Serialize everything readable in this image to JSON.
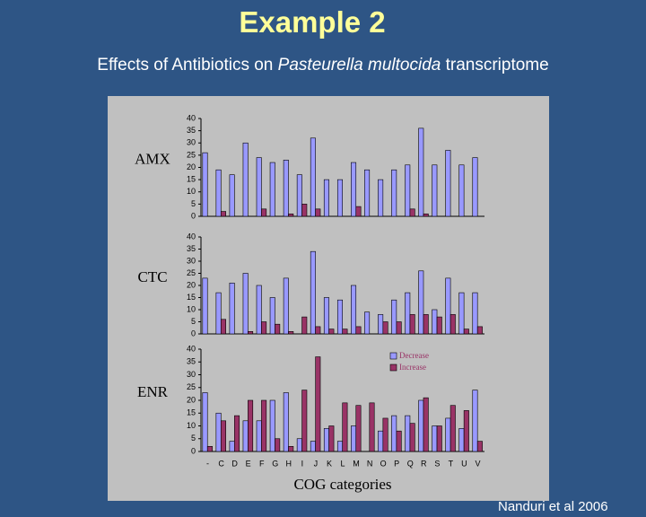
{
  "title": "Example 2",
  "subtitle": [
    "Effects of Antibiotics on",
    "Pasteurella multocida",
    "transcriptome"
  ],
  "footer": "Nanduri et al 2006",
  "chart_data": [
    {
      "type": "bar",
      "title": "AMX",
      "ylim": [
        0,
        40
      ],
      "yticks": [
        0,
        5,
        10,
        15,
        20,
        25,
        30,
        35,
        40
      ],
      "series": [
        {
          "name": "Decrease",
          "color": "#9999ff",
          "values": [
            26,
            19,
            17,
            30,
            24,
            22,
            23,
            17,
            32,
            15,
            15,
            22,
            19,
            15,
            19,
            21,
            36,
            21,
            27,
            21,
            24
          ]
        },
        {
          "name": "Increase",
          "color": "#993366",
          "values": [
            0,
            2,
            0,
            0,
            3,
            0,
            1,
            5,
            3,
            0,
            0,
            4,
            0,
            0,
            0,
            3,
            1,
            0,
            0,
            0,
            0
          ]
        }
      ]
    },
    {
      "type": "bar",
      "title": "CTC",
      "ylim": [
        0,
        40
      ],
      "yticks": [
        0,
        5,
        10,
        15,
        20,
        25,
        30,
        35,
        40
      ],
      "series": [
        {
          "name": "Decrease",
          "color": "#9999ff",
          "values": [
            23,
            17,
            21,
            25,
            20,
            15,
            23,
            0,
            34,
            15,
            14,
            20,
            9,
            8,
            14,
            17,
            26,
            10,
            23,
            17,
            17
          ]
        },
        {
          "name": "Increase",
          "color": "#993366",
          "values": [
            0,
            6,
            0,
            1,
            5,
            4,
            1,
            7,
            3,
            2,
            2,
            3,
            0,
            5,
            5,
            8,
            8,
            7,
            8,
            2,
            3
          ]
        }
      ]
    },
    {
      "type": "bar",
      "title": "ENR",
      "xlabel": "COG categories",
      "legend": "upper right",
      "categories": [
        "-",
        "C",
        "D",
        "E",
        "F",
        "G",
        "H",
        "I",
        "J",
        "K",
        "L",
        "M",
        "N",
        "O",
        "P",
        "Q",
        "R",
        "S",
        "T",
        "U",
        "V"
      ],
      "ylim": [
        0,
        40
      ],
      "yticks": [
        0,
        5,
        10,
        15,
        20,
        25,
        30,
        35,
        40
      ],
      "series": [
        {
          "name": "Decrease",
          "color": "#9999ff",
          "values": [
            23,
            15,
            4,
            12,
            12,
            20,
            23,
            5,
            4,
            9,
            4,
            10,
            0,
            8,
            14,
            14,
            20,
            10,
            13,
            9,
            24
          ]
        },
        {
          "name": "Increase",
          "color": "#993366",
          "values": [
            2,
            12,
            14,
            20,
            20,
            5,
            2,
            24,
            37,
            10,
            19,
            18,
            19,
            13,
            8,
            11,
            21,
            10,
            18,
            16,
            4
          ]
        }
      ]
    }
  ]
}
